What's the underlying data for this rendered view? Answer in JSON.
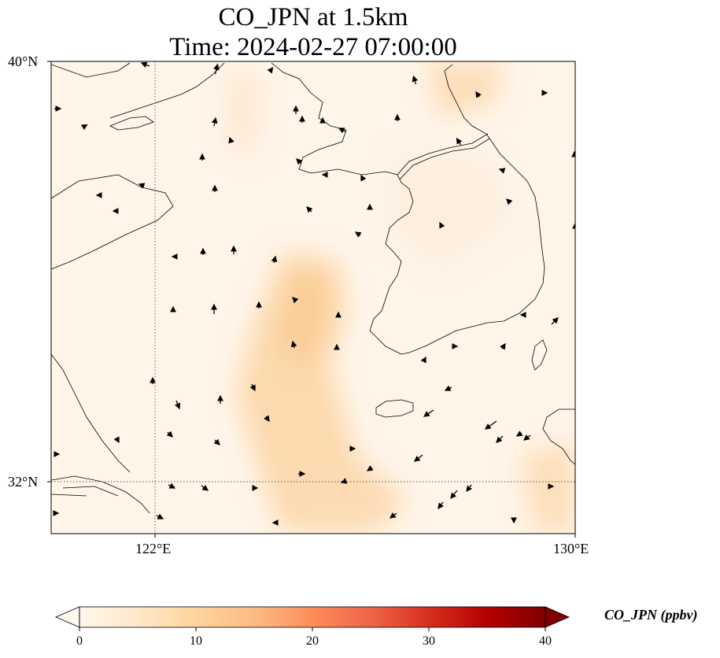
{
  "title_line1": "CO_JPN at 1.5km",
  "title_line2": "Time: 2024-02-27 07:00:00",
  "lat_ticks": [
    {
      "lat": 40,
      "label": "40°N"
    },
    {
      "lat": 32,
      "label": "32°N"
    }
  ],
  "lon_ticks": [
    {
      "lon": 122,
      "label": "122°E"
    },
    {
      "lon": 130,
      "label": "130°E"
    }
  ],
  "gridlines": "dotted",
  "colorbar": {
    "title": "CO_JPN (ppbv)",
    "colormap": "OrRd",
    "min": 0,
    "max": 40,
    "extend": "both",
    "ticks": [
      {
        "value": 0,
        "label": "0"
      },
      {
        "value": 10,
        "label": "10"
      },
      {
        "value": 20,
        "label": "20"
      },
      {
        "value": 30,
        "label": "30"
      },
      {
        "value": 40,
        "label": "40"
      }
    ],
    "stops": [
      "#fff7ec",
      "#fee8c8",
      "#fdd49e",
      "#fdbb84",
      "#fc8d59",
      "#ef6548",
      "#d7301f",
      "#b30000",
      "#7f0000"
    ]
  },
  "colors": {
    "background": "#fff5e9",
    "coastline": "#000000",
    "arrow": "#000000"
  }
}
